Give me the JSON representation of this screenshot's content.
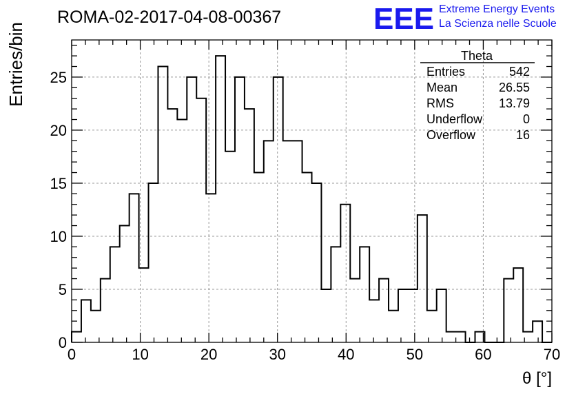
{
  "header": {
    "title": "ROMA-02-2017-04-08-00367",
    "logo_text": "EEE",
    "logo_line1": "Extreme Energy Events",
    "logo_line2": "La Scienza nelle Scuole",
    "logo_color": "#1a1aee"
  },
  "stats_box": {
    "title": "Theta",
    "rows": [
      {
        "label": "Entries",
        "value": "542"
      },
      {
        "label": "Mean",
        "value": "26.55"
      },
      {
        "label": "RMS",
        "value": "13.79"
      },
      {
        "label": "Underflow",
        "value": "0"
      },
      {
        "label": "Overflow",
        "value": "16"
      }
    ]
  },
  "chart_data": {
    "type": "bar",
    "histogram": true,
    "title": "ROMA-02-2017-04-08-00367",
    "xlabel": "θ [°]",
    "ylabel": "Entries/bin",
    "xlim": [
      0,
      70
    ],
    "ylim": [
      0,
      28.5
    ],
    "bin_width": 1.4,
    "x_ticks": [
      0,
      10,
      20,
      30,
      40,
      50,
      60,
      70
    ],
    "y_ticks": [
      0,
      5,
      10,
      15,
      20,
      25
    ],
    "grid": true,
    "values": [
      1,
      4,
      3,
      6,
      9,
      11,
      14,
      7,
      15,
      26,
      22,
      21,
      25,
      23,
      14,
      27,
      18,
      25,
      22,
      16,
      19,
      25,
      19,
      19,
      16,
      15,
      5,
      9,
      13,
      6,
      9,
      4,
      6,
      3,
      5,
      5,
      12,
      3,
      5,
      1,
      1,
      0,
      1,
      0,
      0,
      6,
      7,
      1,
      2,
      0
    ]
  }
}
